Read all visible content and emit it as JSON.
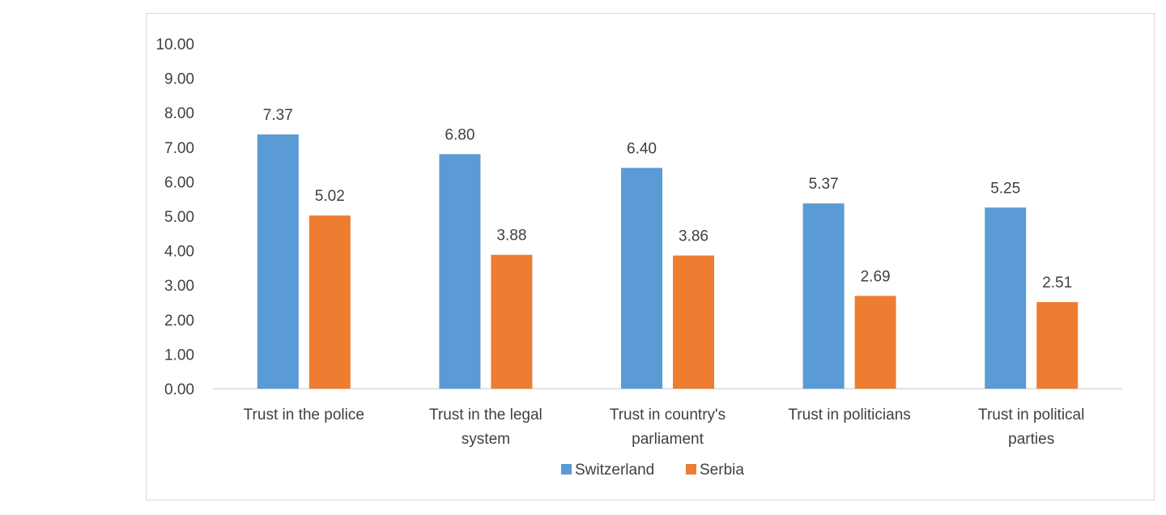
{
  "chart_data": {
    "type": "bar",
    "categories": [
      [
        "Trust in the police"
      ],
      [
        "Trust in the legal",
        "system"
      ],
      [
        "Trust in country's",
        "parliament"
      ],
      [
        "Trust in politicians"
      ],
      [
        "Trust in political",
        "parties"
      ]
    ],
    "series": [
      {
        "name": "Switzerland",
        "color": "#5b9bd5",
        "values": [
          7.37,
          6.8,
          6.4,
          5.37,
          5.25
        ]
      },
      {
        "name": "Serbia",
        "color": "#ed7d31",
        "values": [
          5.02,
          3.88,
          3.86,
          2.69,
          2.51
        ]
      }
    ],
    "ylim": [
      0,
      10
    ],
    "ytick_step": 1,
    "ytick_format_decimals": 2,
    "data_label_decimals": 2,
    "grid": false,
    "legend_position": "bottom",
    "title": "",
    "xlabel": "",
    "ylabel": ""
  }
}
